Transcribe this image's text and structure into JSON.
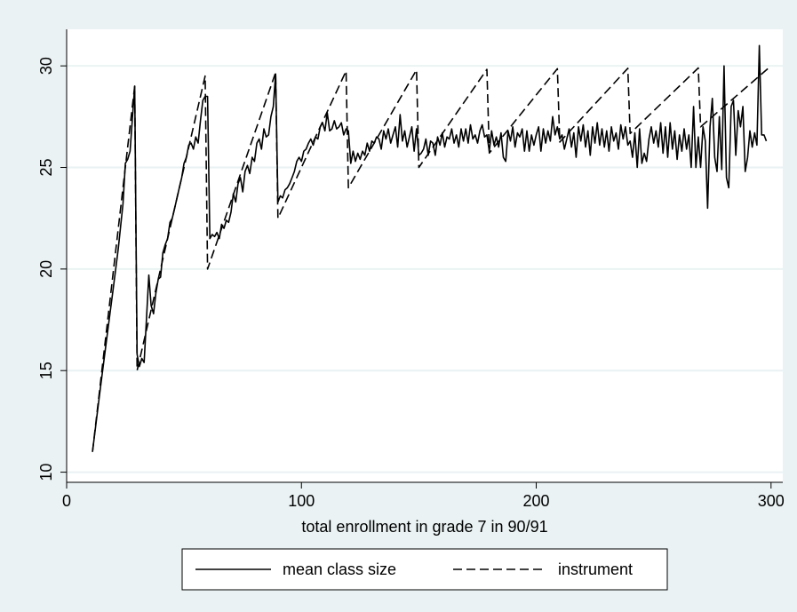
{
  "chart_data": {
    "type": "line",
    "title": "",
    "xlabel": "total enrollment in grade 7 in 90/91",
    "ylabel": "",
    "xlim": [
      0,
      305
    ],
    "ylim": [
      9.5,
      31.8
    ],
    "xticks": [
      0,
      100,
      200,
      300
    ],
    "yticks": [
      10,
      15,
      20,
      25,
      30
    ],
    "grid": true,
    "legend": "bottom",
    "colors": {
      "background": "#eaf2f3",
      "plot_area": "#ffffff",
      "grid": "#eaf2f3",
      "line": "#000000"
    },
    "series": [
      {
        "name": "mean class size",
        "style": "solid",
        "points": [
          [
            11,
            11
          ],
          [
            14,
            13.8
          ],
          [
            17,
            16.5
          ],
          [
            20,
            19.2
          ],
          [
            22,
            21
          ],
          [
            24,
            23.2
          ],
          [
            25,
            25.2
          ],
          [
            26,
            25.4
          ],
          [
            27,
            25.8
          ],
          [
            28,
            27.4
          ],
          [
            29,
            29
          ],
          [
            30,
            15.8
          ],
          [
            31,
            15.2
          ],
          [
            32,
            15.6
          ],
          [
            33,
            15.4
          ],
          [
            34,
            17.5
          ],
          [
            35,
            19.7
          ],
          [
            36,
            18.2
          ],
          [
            37,
            17.8
          ],
          [
            38,
            18.8
          ],
          [
            39,
            19.5
          ],
          [
            40,
            19.6
          ],
          [
            41,
            20.8
          ],
          [
            42,
            21.2
          ],
          [
            43,
            21.5
          ],
          [
            44,
            22.3
          ],
          [
            45,
            22.5
          ],
          [
            46,
            23
          ],
          [
            47,
            23.5
          ],
          [
            48,
            24
          ],
          [
            49,
            24.5
          ],
          [
            50,
            25.2
          ],
          [
            51,
            25.5
          ],
          [
            52,
            26.1
          ],
          [
            53,
            26.2
          ],
          [
            54,
            25.9
          ],
          [
            55,
            26.5
          ],
          [
            56,
            26.2
          ],
          [
            57,
            27.3
          ],
          [
            58,
            28.3
          ],
          [
            59,
            28.5
          ],
          [
            60,
            28.5
          ],
          [
            61,
            21.5
          ],
          [
            62,
            21.7
          ],
          [
            63,
            21.6
          ],
          [
            64,
            21.8
          ],
          [
            65,
            21.5
          ],
          [
            66,
            22.2
          ],
          [
            67,
            22
          ],
          [
            68,
            22.4
          ],
          [
            69,
            22.3
          ],
          [
            70,
            22.8
          ],
          [
            71,
            23.7
          ],
          [
            72,
            23.3
          ],
          [
            73,
            24.2
          ],
          [
            74,
            24.5
          ],
          [
            75,
            23.8
          ],
          [
            76,
            24.8
          ],
          [
            77,
            25.1
          ],
          [
            78,
            24.7
          ],
          [
            79,
            25.5
          ],
          [
            80,
            25.3
          ],
          [
            81,
            26.2
          ],
          [
            82,
            26.4
          ],
          [
            83,
            25.9
          ],
          [
            84,
            26.9
          ],
          [
            85,
            26.5
          ],
          [
            86,
            26.6
          ],
          [
            87,
            27.5
          ],
          [
            88,
            28
          ],
          [
            89,
            29.6
          ],
          [
            90,
            23.3
          ],
          [
            91,
            23.6
          ],
          [
            92,
            23.5
          ],
          [
            93,
            23.9
          ],
          [
            94,
            24
          ],
          [
            95,
            24.2
          ],
          [
            96,
            24.5
          ],
          [
            97,
            24.8
          ],
          [
            98,
            25.3
          ],
          [
            99,
            25.5
          ],
          [
            100,
            25.3
          ],
          [
            101,
            25.8
          ],
          [
            102,
            25.9
          ],
          [
            103,
            26.2
          ],
          [
            104,
            26.4
          ],
          [
            105,
            26.1
          ],
          [
            106,
            26.5
          ],
          [
            107,
            26.4
          ],
          [
            108,
            27
          ],
          [
            109,
            27.2
          ],
          [
            110,
            26.8
          ],
          [
            111,
            27.7
          ],
          [
            112,
            26.8
          ],
          [
            113,
            26.9
          ],
          [
            114,
            27.3
          ],
          [
            115,
            26.9
          ],
          [
            116,
            27
          ],
          [
            117,
            27.2
          ],
          [
            118,
            26.6
          ],
          [
            119,
            26.9
          ],
          [
            120,
            26.8
          ],
          [
            121,
            25.2
          ],
          [
            122,
            25.8
          ],
          [
            123,
            25.3
          ],
          [
            124,
            25.7
          ],
          [
            125,
            25.4
          ],
          [
            126,
            25.8
          ],
          [
            127,
            25.6
          ],
          [
            128,
            26.2
          ],
          [
            129,
            25.8
          ],
          [
            130,
            26.3
          ],
          [
            131,
            26.2
          ],
          [
            132,
            26.5
          ],
          [
            133,
            26.4
          ],
          [
            134,
            25.9
          ],
          [
            135,
            26.8
          ],
          [
            136,
            26.4
          ],
          [
            137,
            26.9
          ],
          [
            138,
            26.2
          ],
          [
            139,
            26.6
          ],
          [
            140,
            27
          ],
          [
            141,
            26
          ],
          [
            142,
            27.6
          ],
          [
            143,
            26.3
          ],
          [
            144,
            26.8
          ],
          [
            145,
            26
          ],
          [
            146,
            26.5
          ],
          [
            147,
            27
          ],
          [
            148,
            25.8
          ],
          [
            149,
            26.9
          ],
          [
            150,
            25.6
          ],
          [
            151,
            25.7
          ],
          [
            152,
            25.9
          ],
          [
            153,
            26.4
          ],
          [
            154,
            25.6
          ],
          [
            155,
            26.3
          ],
          [
            156,
            26.2
          ],
          [
            157,
            25.6
          ],
          [
            158,
            26.5
          ],
          [
            159,
            26.1
          ],
          [
            160,
            26.7
          ],
          [
            161,
            26
          ],
          [
            162,
            26.5
          ],
          [
            163,
            26.4
          ],
          [
            164,
            26.9
          ],
          [
            165,
            26.2
          ],
          [
            166,
            26.6
          ],
          [
            167,
            26
          ],
          [
            168,
            26.9
          ],
          [
            169,
            26.3
          ],
          [
            170,
            26.9
          ],
          [
            171,
            26.2
          ],
          [
            172,
            27.1
          ],
          [
            173,
            26.4
          ],
          [
            174,
            26.6
          ],
          [
            175,
            26.2
          ],
          [
            176,
            26.8
          ],
          [
            177,
            27.1
          ],
          [
            178,
            26.5
          ],
          [
            179,
            26.6
          ],
          [
            180,
            25.8
          ],
          [
            181,
            26.8
          ],
          [
            182,
            26.1
          ],
          [
            183,
            26.5
          ],
          [
            184,
            26
          ],
          [
            185,
            26.7
          ],
          [
            186,
            25.5
          ],
          [
            187,
            25.3
          ],
          [
            188,
            26.8
          ],
          [
            189,
            26.3
          ],
          [
            190,
            27
          ],
          [
            191,
            26
          ],
          [
            192,
            26.7
          ],
          [
            193,
            26.5
          ],
          [
            194,
            26.9
          ],
          [
            195,
            25.8
          ],
          [
            196,
            26.8
          ],
          [
            197,
            25.8
          ],
          [
            198,
            26.6
          ],
          [
            199,
            26.1
          ],
          [
            200,
            26.6
          ],
          [
            201,
            27
          ],
          [
            202,
            25.8
          ],
          [
            203,
            26.9
          ],
          [
            204,
            26.2
          ],
          [
            205,
            26.8
          ],
          [
            206,
            26.3
          ],
          [
            207,
            27.5
          ],
          [
            208,
            26.6
          ],
          [
            209,
            27
          ],
          [
            210,
            26.4
          ],
          [
            211,
            26.6
          ],
          [
            212,
            25.9
          ],
          [
            213,
            26.4
          ],
          [
            214,
            26.9
          ],
          [
            215,
            26
          ],
          [
            216,
            26.7
          ],
          [
            217,
            25.5
          ],
          [
            218,
            27
          ],
          [
            219,
            26.3
          ],
          [
            220,
            27.1
          ],
          [
            221,
            26
          ],
          [
            222,
            26.8
          ],
          [
            223,
            25.6
          ],
          [
            224,
            27
          ],
          [
            225,
            26.2
          ],
          [
            226,
            27.2
          ],
          [
            227,
            26.1
          ],
          [
            228,
            26.9
          ],
          [
            229,
            26
          ],
          [
            230,
            26.8
          ],
          [
            231,
            25.8
          ],
          [
            232,
            27
          ],
          [
            233,
            26.3
          ],
          [
            234,
            26.7
          ],
          [
            235,
            25.9
          ],
          [
            236,
            27.1
          ],
          [
            237,
            26.4
          ],
          [
            238,
            27
          ],
          [
            239,
            26.1
          ],
          [
            240,
            26.3
          ],
          [
            241,
            25.5
          ],
          [
            242,
            26.7
          ],
          [
            243,
            25
          ],
          [
            244,
            26.9
          ],
          [
            245,
            25.2
          ],
          [
            246,
            25.7
          ],
          [
            247,
            25.3
          ],
          [
            248,
            26.4
          ],
          [
            249,
            27
          ],
          [
            250,
            26.2
          ],
          [
            251,
            26.8
          ],
          [
            252,
            26
          ],
          [
            253,
            27.2
          ],
          [
            254,
            25.7
          ],
          [
            255,
            27
          ],
          [
            256,
            25.5
          ],
          [
            257,
            27.2
          ],
          [
            258,
            25.9
          ],
          [
            259,
            26.8
          ],
          [
            260,
            25.4
          ],
          [
            261,
            26.6
          ],
          [
            262,
            25.8
          ],
          [
            263,
            26.9
          ],
          [
            264,
            25.9
          ],
          [
            265,
            26.6
          ],
          [
            266,
            25
          ],
          [
            267,
            28
          ],
          [
            268,
            25
          ],
          [
            269,
            26.5
          ],
          [
            270,
            25
          ],
          [
            271,
            27
          ],
          [
            272,
            26.3
          ],
          [
            273,
            23
          ],
          [
            274,
            27
          ],
          [
            275,
            28.4
          ],
          [
            276,
            25.5
          ],
          [
            277,
            24.8
          ],
          [
            278,
            27.5
          ],
          [
            279,
            24.9
          ],
          [
            280,
            30
          ],
          [
            281,
            24.5
          ],
          [
            282,
            24
          ],
          [
            283,
            28
          ],
          [
            284,
            28.3
          ],
          [
            285,
            25.6
          ],
          [
            286,
            27.8
          ],
          [
            287,
            27
          ],
          [
            288,
            28
          ],
          [
            289,
            24.8
          ],
          [
            290,
            25.5
          ],
          [
            291,
            26.8
          ],
          [
            292,
            26
          ],
          [
            293,
            26.7
          ],
          [
            294,
            26.1
          ],
          [
            295,
            31
          ],
          [
            296,
            26.6
          ],
          [
            297,
            26.6
          ],
          [
            298,
            26.3
          ]
        ]
      },
      {
        "name": "instrument",
        "style": "dashed",
        "points": [
          [
            11,
            11
          ],
          [
            29,
            29
          ],
          [
            30,
            15
          ],
          [
            59,
            29.5
          ],
          [
            60,
            20
          ],
          [
            89,
            29.67
          ],
          [
            90,
            22.5
          ],
          [
            119,
            29.75
          ],
          [
            120,
            24
          ],
          [
            149,
            29.8
          ],
          [
            150,
            25
          ],
          [
            179,
            29.83
          ],
          [
            180,
            25.71
          ],
          [
            209,
            29.86
          ],
          [
            210,
            26.25
          ],
          [
            239,
            29.88
          ],
          [
            240,
            26.67
          ],
          [
            269,
            29.9
          ],
          [
            270,
            27
          ],
          [
            299,
            29.9
          ]
        ]
      }
    ]
  }
}
